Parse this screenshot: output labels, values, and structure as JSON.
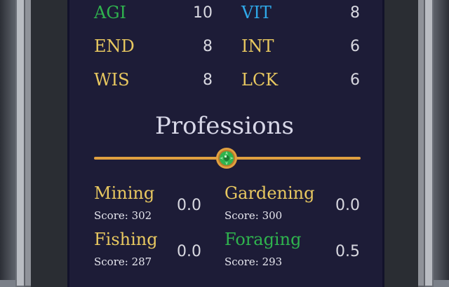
{
  "stats": [
    {
      "label": "AGI",
      "value": "10",
      "color": "#2fb34e"
    },
    {
      "label": "VIT",
      "value": "8",
      "color": "#2fa8e8"
    },
    {
      "label": "END",
      "value": "8",
      "color": "#e8c860"
    },
    {
      "label": "INT",
      "value": "6",
      "color": "#e8c860"
    },
    {
      "label": "WIS",
      "value": "8",
      "color": "#e8c860"
    },
    {
      "label": "LCK",
      "value": "6",
      "color": "#e8c860"
    }
  ],
  "professions": {
    "title": "Professions",
    "items": [
      {
        "name": "Mining",
        "score": "Score: 302",
        "value": "0.0",
        "color": "#e8c860"
      },
      {
        "name": "Gardening",
        "score": "Score: 300",
        "value": "0.0",
        "color": "#e8c860"
      },
      {
        "name": "Fishing",
        "score": "Score: 287",
        "value": "0.0",
        "color": "#e8c860"
      },
      {
        "name": "Foraging",
        "score": "Score: 293",
        "value": "0.5",
        "color": "#2fb34e"
      }
    ]
  },
  "divider_icon": "green-gem-icon"
}
